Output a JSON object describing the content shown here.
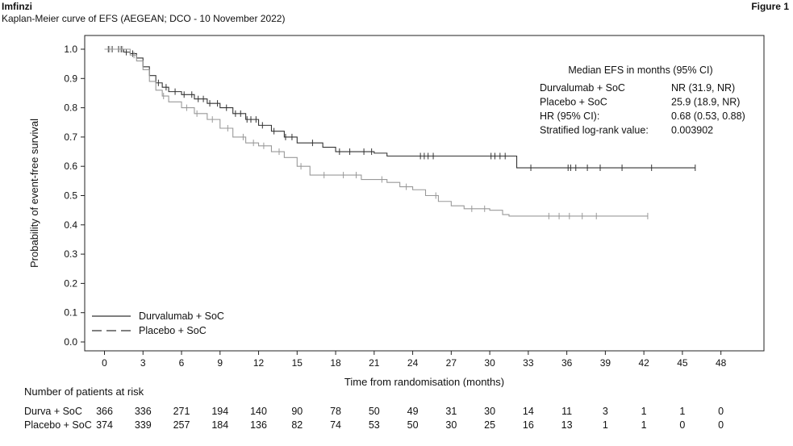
{
  "header": {
    "brand": "Imfinzi",
    "subtitle": "Kaplan-Meier curve of EFS (AEGEAN; DCO - 10 November 2022)",
    "figure_label": "Figure 1"
  },
  "chart_data": {
    "type": "line",
    "xlabel": "Time from randomisation (months)",
    "ylabel": "Probability of event-free survival",
    "xlim": [
      0,
      48
    ],
    "ylim": [
      0,
      1
    ],
    "x_ticks": [
      0,
      3,
      6,
      9,
      12,
      15,
      18,
      21,
      24,
      27,
      30,
      33,
      36,
      39,
      42,
      45,
      48
    ],
    "y_ticks": [
      "0.0",
      "0.1",
      "0.2",
      "0.3",
      "0.4",
      "0.5",
      "0.6",
      "0.7",
      "0.8",
      "0.9",
      "1.0"
    ],
    "grid": false,
    "legend_position": "bottom-left",
    "series": [
      {
        "name": "Durvalumab + SoC",
        "color": "#333333",
        "points": [
          [
            0,
            1.0
          ],
          [
            1,
            1.0
          ],
          [
            1.5,
            0.99
          ],
          [
            2,
            0.985
          ],
          [
            2.5,
            0.97
          ],
          [
            3,
            0.94
          ],
          [
            3.5,
            0.91
          ],
          [
            4,
            0.885
          ],
          [
            4.5,
            0.87
          ],
          [
            5,
            0.855
          ],
          [
            6,
            0.845
          ],
          [
            7,
            0.83
          ],
          [
            8,
            0.815
          ],
          [
            9,
            0.8
          ],
          [
            10,
            0.78
          ],
          [
            11,
            0.76
          ],
          [
            12,
            0.74
          ],
          [
            13,
            0.72
          ],
          [
            14,
            0.7
          ],
          [
            15,
            0.68
          ],
          [
            17,
            0.665
          ],
          [
            18,
            0.65
          ],
          [
            21,
            0.645
          ],
          [
            22,
            0.635
          ],
          [
            32,
            0.635
          ],
          [
            32.1,
            0.595
          ],
          [
            46,
            0.595
          ]
        ],
        "censor_x": [
          0.3,
          0.6,
          1.1,
          1.3,
          1.7,
          2.2,
          4.2,
          4.8,
          5.5,
          6.2,
          6.8,
          7.3,
          7.7,
          8.2,
          8.8,
          9.5,
          10.2,
          10.6,
          11.1,
          11.4,
          11.8,
          12.3,
          13.2,
          14.1,
          14.6,
          16.2,
          18.3,
          19.1,
          20.2,
          20.8,
          24.6,
          24.9,
          25.2,
          25.6,
          30.1,
          30.4,
          30.8,
          31.2,
          33.2,
          36.1,
          36.3,
          36.7,
          37.6,
          38.6,
          40.3,
          42.6,
          46.0
        ]
      },
      {
        "name": "Placebo + SoC",
        "color": "#999999",
        "points": [
          [
            0,
            1.0
          ],
          [
            1,
            1.0
          ],
          [
            2,
            0.98
          ],
          [
            2.5,
            0.96
          ],
          [
            3,
            0.93
          ],
          [
            3.5,
            0.89
          ],
          [
            4,
            0.86
          ],
          [
            4.5,
            0.84
          ],
          [
            5,
            0.82
          ],
          [
            6,
            0.8
          ],
          [
            7,
            0.78
          ],
          [
            8,
            0.76
          ],
          [
            9,
            0.73
          ],
          [
            10,
            0.7
          ],
          [
            11,
            0.68
          ],
          [
            12,
            0.67
          ],
          [
            13,
            0.65
          ],
          [
            14,
            0.63
          ],
          [
            15,
            0.6
          ],
          [
            16,
            0.57
          ],
          [
            19,
            0.57
          ],
          [
            20,
            0.555
          ],
          [
            22,
            0.545
          ],
          [
            23,
            0.53
          ],
          [
            24,
            0.52
          ],
          [
            25,
            0.5
          ],
          [
            26,
            0.48
          ],
          [
            27,
            0.465
          ],
          [
            28,
            0.455
          ],
          [
            30,
            0.45
          ],
          [
            31,
            0.435
          ],
          [
            31.5,
            0.43
          ],
          [
            42.3,
            0.43
          ]
        ],
        "censor_x": [
          0.4,
          1.4,
          2.3,
          4.6,
          6.4,
          7.2,
          8.4,
          9.6,
          10.8,
          11.6,
          12.4,
          13.6,
          15.3,
          17.1,
          18.6,
          19.6,
          21.6,
          23.5,
          25.8,
          28.6,
          29.6,
          34.6,
          35.4,
          36.2,
          37.2,
          38.3,
          42.3
        ]
      }
    ],
    "annotation": {
      "title": "Median EFS in months (95% CI)",
      "rows": [
        {
          "label": "Durvalumab + SoC",
          "value": "NR (31.9, NR)"
        },
        {
          "label": "Placebo + SoC",
          "value": "25.9 (18.9, NR)"
        },
        {
          "label": "HR (95% CI):",
          "value": "0.68 (0.53, 0.88)"
        },
        {
          "label": "Stratified log-rank value:",
          "value": "0.003902"
        }
      ]
    }
  },
  "risk_table": {
    "title": "Number of patients at risk",
    "rows": [
      {
        "label": "Durva + SoC",
        "values": [
          "366",
          "336",
          "271",
          "194",
          "140",
          "90",
          "78",
          "50",
          "49",
          "31",
          "30",
          "14",
          "11",
          "3",
          "1",
          "1",
          "0"
        ]
      },
      {
        "label": "Placebo + SoC",
        "values": [
          "374",
          "339",
          "257",
          "184",
          "136",
          "82",
          "74",
          "53",
          "50",
          "30",
          "25",
          "16",
          "13",
          "1",
          "1",
          "0",
          "0"
        ]
      }
    ]
  },
  "legend": [
    {
      "name": "Durvalumab + SoC",
      "style": "solid"
    },
    {
      "name": "Placebo + SoC",
      "style": "dashed"
    }
  ]
}
